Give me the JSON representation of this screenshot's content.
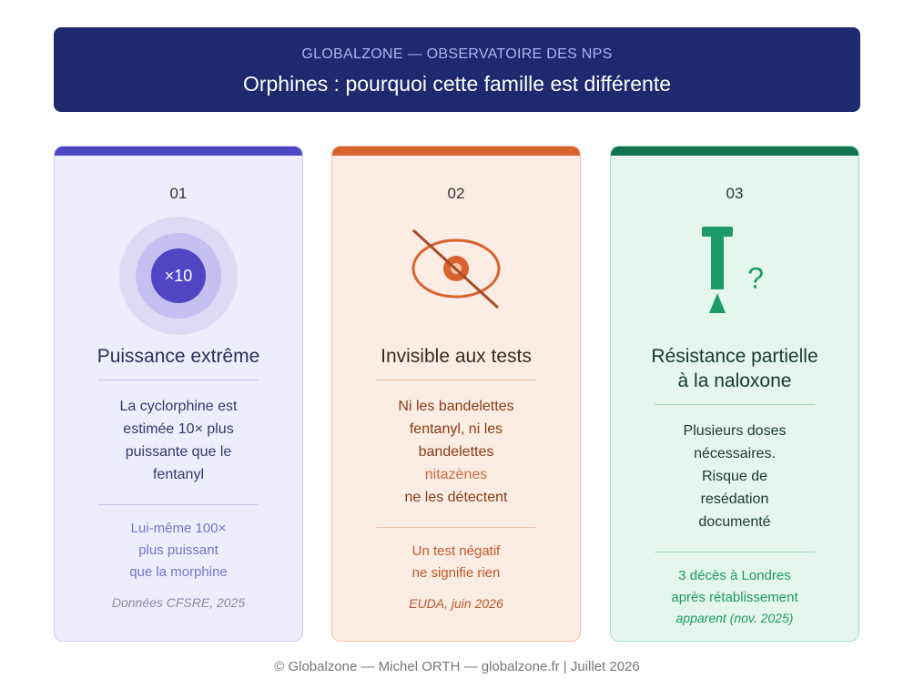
{
  "header": {
    "kicker": "GLOBALZONE — OBSERVATOIRE DES NPS",
    "title": "Orphines : pourquoi cette famille est différente"
  },
  "cards": [
    {
      "number": "01",
      "icon_label": "×10",
      "title": [
        "Puissance extrême"
      ],
      "body": [
        "La cyclorphine est",
        "estimée 10× plus",
        "puissante que le",
        "fentanyl"
      ],
      "note": [
        "Lui-même 100×",
        "plus puissant",
        "que la morphine"
      ],
      "source": "Données CFSRE, 2025"
    },
    {
      "number": "02",
      "title": [
        "Invisible aux tests"
      ],
      "body": [
        "Ni les bandelettes",
        "fentanyl, ni les",
        "bandelettes",
        "nitazènes",
        "ne les détectent"
      ],
      "note": [
        "Un test négatif",
        "ne signifie rien"
      ],
      "source": "EUDA, juin 2026"
    },
    {
      "number": "03",
      "icon_label": "?",
      "title": [
        "Résistance partielle",
        "à la naloxone"
      ],
      "body": [
        "Plusieurs doses",
        "nécessaires.",
        "Risque de",
        "resédation",
        "documenté"
      ],
      "note": [
        "3 décès à Londres",
        "après rétablissement"
      ],
      "source": "apparent (nov. 2025)"
    }
  ],
  "footer": "© Globalzone — Michel ORTH — globalzone.fr | Juillet 2026"
}
